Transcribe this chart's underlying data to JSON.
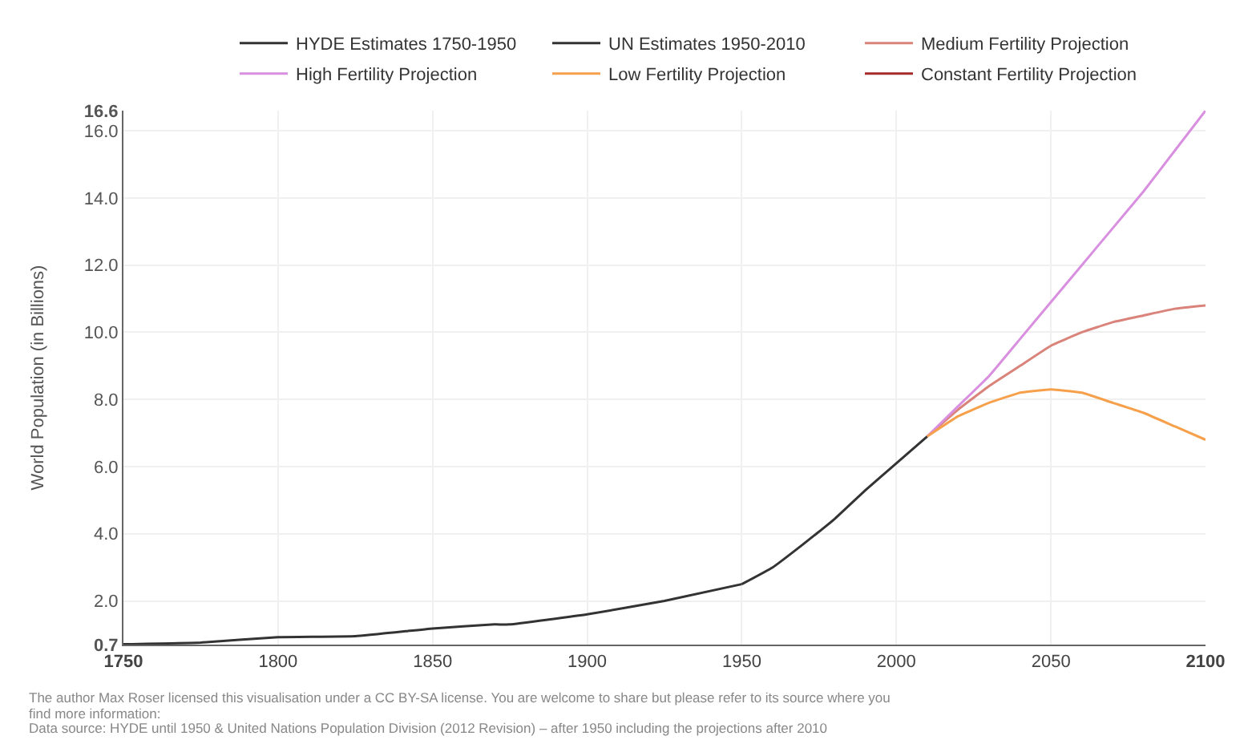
{
  "chart_data": {
    "type": "line",
    "ylabel": "World Population (in Billions)",
    "xlim": [
      1750,
      2100
    ],
    "xticks": [
      1750,
      1800,
      1850,
      1900,
      1950,
      2000,
      2050,
      2100
    ],
    "ylim": [
      0.7,
      16.6
    ],
    "yticks": [
      {
        "value": 0.7,
        "label": "0.7"
      },
      {
        "value": 2,
        "label": "2.0"
      },
      {
        "value": 4,
        "label": "4.0"
      },
      {
        "value": 6,
        "label": "6.0"
      },
      {
        "value": 8,
        "label": "8.0"
      },
      {
        "value": 10,
        "label": "10.0"
      },
      {
        "value": 12,
        "label": "12.0"
      },
      {
        "value": 14,
        "label": "14.0"
      },
      {
        "value": 16,
        "label": "16.0"
      },
      {
        "value": 16.6,
        "label": "16.6"
      }
    ],
    "grid": true,
    "legend": "top",
    "marker": "none",
    "line_style": "solid",
    "series": [
      {
        "name": "HYDE Estimates 1750-1950",
        "color": "#333333",
        "x": [
          1750,
          1775,
          1800,
          1825,
          1850,
          1870,
          1875,
          1900,
          1925,
          1950
        ],
        "values": [
          0.71,
          0.76,
          0.92,
          0.95,
          1.18,
          1.3,
          1.3,
          1.6,
          2.0,
          2.5
        ]
      },
      {
        "name": "UN Estimates 1950-2010",
        "color": "#333333",
        "x": [
          1950,
          1960,
          1970,
          1980,
          1990,
          2000,
          2010
        ],
        "values": [
          2.5,
          3.0,
          3.7,
          4.44,
          5.3,
          6.1,
          6.9
        ]
      },
      {
        "name": "Medium Fertility Projection",
        "color": "#d9837a",
        "x": [
          2010,
          2020,
          2030,
          2040,
          2050,
          2060,
          2070,
          2080,
          2090,
          2100
        ],
        "values": [
          6.9,
          7.7,
          8.4,
          9.0,
          9.6,
          10.0,
          10.3,
          10.5,
          10.7,
          10.8
        ]
      },
      {
        "name": "High Fertility Projection",
        "color": "#d98fe0",
        "x": [
          2010,
          2020,
          2030,
          2040,
          2050,
          2060,
          2070,
          2080,
          2090,
          2100
        ],
        "values": [
          6.9,
          7.8,
          8.7,
          9.8,
          10.9,
          12.0,
          13.1,
          14.2,
          15.4,
          16.6
        ]
      },
      {
        "name": "Low Fertility Projection",
        "color": "#f7a04b",
        "x": [
          2010,
          2020,
          2030,
          2040,
          2050,
          2060,
          2070,
          2080,
          2090,
          2100
        ],
        "values": [
          6.9,
          7.5,
          7.9,
          8.2,
          8.3,
          8.2,
          7.9,
          7.6,
          7.2,
          6.8
        ]
      },
      {
        "name": "Constant Fertility Projection",
        "color": "#a52a2a"
      }
    ],
    "annotations": [
      "The author Max Roser licensed this visualisation under a CC BY-SA license. You are welcome to share but please refer to its source where you",
      "find more information:",
      "Data source: HYDE until 1950 & United Nations Population Division (2012 Revision) – after 1950 including the projections after 2010"
    ]
  }
}
